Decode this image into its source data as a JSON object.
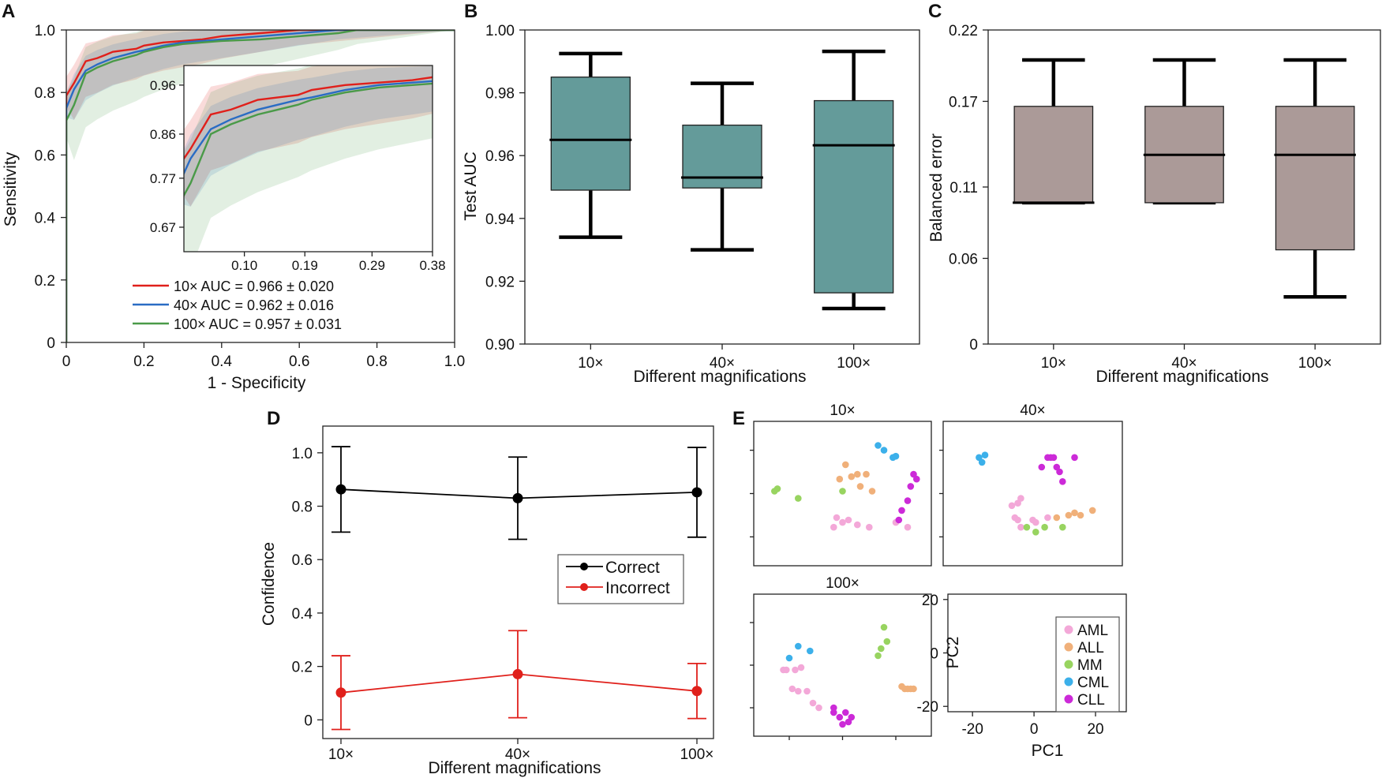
{
  "panel_labels": {
    "a": "A",
    "b": "B",
    "c": "C",
    "d": "D",
    "e": "E"
  },
  "colors": {
    "red": "#e0201b",
    "blue": "#2a6cc4",
    "green": "#4a9a48",
    "box_b": "#649b9a",
    "box_c": "#ab9a98",
    "black": "#000000",
    "aml": "#f3a8d8",
    "all": "#f0b07a",
    "mm": "#98d460",
    "cml": "#3cb0ea",
    "cll": "#cc2ad8"
  },
  "chart_data": [
    {
      "id": "A",
      "type": "line",
      "xlabel": "1 - Specificity",
      "ylabel": "Sensitivity",
      "xlim": [
        0,
        1
      ],
      "ylim": [
        0,
        1
      ],
      "xticks": [
        "0",
        "0.2",
        "0.4",
        "0.6",
        "0.8",
        "1.0"
      ],
      "yticks": [
        "0",
        "0.2",
        "0.4",
        "0.6",
        "0.8",
        "1.0"
      ],
      "series": [
        {
          "name": "10× AUC = 0.966 ± 0.020",
          "color": "#e0201b",
          "x": [
            0,
            0,
            0.02,
            0.05,
            0.08,
            0.1,
            0.12,
            0.15,
            0.18,
            0.2,
            0.25,
            0.3,
            0.35,
            0.4,
            0.5,
            0.6,
            0.7,
            0.75,
            0.8,
            1
          ],
          "y": [
            0,
            0.79,
            0.83,
            0.9,
            0.91,
            0.92,
            0.93,
            0.935,
            0.94,
            0.95,
            0.96,
            0.965,
            0.97,
            0.98,
            0.99,
            1,
            1,
            1,
            1,
            1
          ]
        },
        {
          "name": "40× AUC = 0.962 ± 0.016",
          "color": "#2a6cc4",
          "x": [
            0,
            0,
            0.02,
            0.05,
            0.08,
            0.1,
            0.12,
            0.15,
            0.18,
            0.2,
            0.25,
            0.3,
            0.35,
            0.4,
            0.5,
            0.6,
            0.7,
            0.75,
            0.8,
            1
          ],
          "y": [
            0,
            0.75,
            0.81,
            0.87,
            0.89,
            0.9,
            0.91,
            0.92,
            0.93,
            0.935,
            0.95,
            0.96,
            0.965,
            0.97,
            0.98,
            0.99,
            1,
            1,
            1,
            1
          ]
        },
        {
          "name": "100× AUC = 0.957 ± 0.031",
          "color": "#4a9a48",
          "x": [
            0,
            0,
            0.02,
            0.05,
            0.08,
            0.1,
            0.12,
            0.15,
            0.18,
            0.2,
            0.25,
            0.3,
            0.35,
            0.4,
            0.5,
            0.6,
            0.7,
            0.75,
            0.8,
            1
          ],
          "y": [
            0,
            0.71,
            0.76,
            0.86,
            0.88,
            0.89,
            0.9,
            0.91,
            0.92,
            0.93,
            0.945,
            0.955,
            0.96,
            0.965,
            0.97,
            0.98,
            0.99,
            1,
            1,
            1
          ]
        }
      ],
      "inset": {
        "xlim": [
          0.01,
          0.38
        ],
        "ylim": [
          0.62,
          1.0
        ],
        "xticks": [
          "0.10",
          "0.19",
          "0.29",
          "0.38"
        ],
        "yticks": [
          "0.67",
          "0.77",
          "0.86",
          "0.96"
        ]
      }
    },
    {
      "id": "B",
      "type": "box",
      "xlabel": "Different magnifications",
      "ylabel": "Test AUC",
      "categories": [
        "10×",
        "40×",
        "100×"
      ],
      "ylim": [
        0.9,
        1.0
      ],
      "yticks": [
        "0.90",
        "0.92",
        "0.94",
        "0.96",
        "0.98",
        "1.00"
      ],
      "boxes": [
        {
          "min": 0.934,
          "q1": 0.949,
          "median": 0.965,
          "q3": 0.985,
          "max": 0.9925
        },
        {
          "min": 0.93,
          "q1": 0.9497,
          "median": 0.953,
          "q3": 0.9697,
          "max": 0.983
        },
        {
          "min": 0.9113,
          "q1": 0.9163,
          "median": 0.9633,
          "q3": 0.9775,
          "max": 0.9932
        }
      ]
    },
    {
      "id": "C",
      "type": "box",
      "xlabel": "Different magnifications",
      "ylabel": "Balanced error",
      "categories": [
        "10×",
        "40×",
        "100×"
      ],
      "ylim": [
        0,
        0.22
      ],
      "yticks": [
        "0",
        "0.06",
        "0.11",
        "0.17",
        "0.22"
      ],
      "boxes": [
        {
          "min": 0.099,
          "q1": 0.099,
          "median": 0.099,
          "q3": 0.1665,
          "max": 0.199
        },
        {
          "min": 0.099,
          "q1": 0.099,
          "median": 0.1325,
          "q3": 0.1665,
          "max": 0.199
        },
        {
          "min": 0.033,
          "q1": 0.066,
          "median": 0.1325,
          "q3": 0.1665,
          "max": 0.199
        }
      ]
    },
    {
      "id": "D",
      "type": "line",
      "xlabel": "Different magnifications",
      "ylabel": "Confidence",
      "categories": [
        "10×",
        "40×",
        "100×"
      ],
      "ylim": [
        -0.07,
        1.1
      ],
      "yticks": [
        "0",
        "0.2",
        "0.4",
        "0.6",
        "0.8",
        "1.0"
      ],
      "series": [
        {
          "name": "Correct",
          "color": "#000000",
          "values": [
            0.863,
            0.83,
            0.852
          ],
          "err": [
            0.16,
            0.154,
            0.168
          ]
        },
        {
          "name": "Incorrect",
          "color": "#e0201b",
          "values": [
            0.102,
            0.171,
            0.108
          ],
          "err": [
            0.138,
            0.163,
            0.103
          ]
        }
      ]
    },
    {
      "id": "E",
      "type": "scatter",
      "xlabel": "PC1",
      "ylabel": "PC2",
      "xticks": [
        "-20",
        "0",
        "20"
      ],
      "yticks": [
        "-20",
        "0",
        "20"
      ],
      "classes": [
        "AML",
        "ALL",
        "MM",
        "CML",
        "CLL"
      ],
      "panels": [
        {
          "title": "10×",
          "points": {
            "AML": [
              [
                -2,
                -10
              ],
              [
                0,
                -12
              ],
              [
                2,
                -11
              ],
              [
                -3,
                -14
              ],
              [
                5,
                -13
              ],
              [
                9,
                -14
              ],
              [
                18,
                -12
              ],
              [
                22,
                -14
              ]
            ],
            "ALL": [
              [
                1,
                12
              ],
              [
                3,
                7
              ],
              [
                -1,
                6
              ],
              [
                5,
                8
              ],
              [
                8,
                8
              ],
              [
                6,
                3
              ],
              [
                10,
                1
              ]
            ],
            "MM": [
              [
                -23,
                1
              ],
              [
                -22,
                2
              ],
              [
                -15,
                -2
              ],
              [
                0,
                1
              ]
            ],
            "CML": [
              [
                12,
                20
              ],
              [
                14,
                18
              ],
              [
                17,
                15
              ],
              [
                18,
                15.5
              ]
            ],
            "CLL": [
              [
                24,
                8
              ],
              [
                25,
                6
              ],
              [
                23,
                3
              ],
              [
                22,
                -3
              ],
              [
                20,
                -7
              ],
              [
                19,
                -11
              ]
            ]
          }
        },
        {
          "title": "40×",
          "points": {
            "AML": [
              [
                -7,
                -5
              ],
              [
                -5,
                -4
              ],
              [
                -4,
                -2
              ],
              [
                -6,
                -10
              ],
              [
                -5,
                -11
              ],
              [
                -4,
                -14
              ],
              [
                0,
                -11
              ],
              [
                1,
                -12
              ],
              [
                5,
                -10
              ]
            ],
            "ALL": [
              [
                8,
                -10
              ],
              [
                12,
                -9
              ],
              [
                14,
                -8
              ],
              [
                16,
                -9
              ],
              [
                20,
                -7
              ]
            ],
            "MM": [
              [
                -2,
                -14
              ],
              [
                1,
                -16
              ],
              [
                4,
                -14
              ],
              [
                10,
                -14
              ]
            ],
            "CML": [
              [
                -18,
                15
              ],
              [
                -16,
                16
              ],
              [
                -17,
                13
              ]
            ],
            "CLL": [
              [
                5,
                15
              ],
              [
                6,
                15
              ],
              [
                7,
                15
              ],
              [
                14,
                15
              ],
              [
                3,
                11
              ],
              [
                8,
                11
              ],
              [
                9,
                9
              ],
              [
                10,
                5
              ]
            ]
          }
        },
        {
          "title": "100×",
          "points": {
            "AML": [
              [
                -20,
                -2
              ],
              [
                -19,
                -2
              ],
              [
                -16,
                -2
              ],
              [
                -14,
                -1
              ],
              [
                -17,
                -10
              ],
              [
                -15,
                -11
              ],
              [
                -12,
                -11
              ],
              [
                -10,
                -16
              ],
              [
                -8,
                -18
              ]
            ],
            "ALL": [
              [
                20,
                -9
              ],
              [
                21,
                -10
              ],
              [
                22,
                -10
              ],
              [
                23,
                -10
              ],
              [
                24,
                -10
              ]
            ],
            "MM": [
              [
                14,
                16
              ],
              [
                15,
                10
              ],
              [
                13,
                7
              ],
              [
                12,
                4
              ]
            ],
            "CML": [
              [
                -18,
                3
              ],
              [
                -15,
                8
              ],
              [
                -11,
                6
              ]
            ],
            "CLL": [
              [
                -3,
                -18
              ],
              [
                -3,
                -20
              ],
              [
                1,
                -20
              ],
              [
                -1,
                -22
              ],
              [
                3,
                -22
              ],
              [
                2,
                -24
              ],
              [
                0,
                -25
              ]
            ]
          }
        }
      ],
      "legend": [
        {
          "label": "AML",
          "color": "#f3a8d8"
        },
        {
          "label": "ALL",
          "color": "#f0b07a"
        },
        {
          "label": "MM",
          "color": "#98d460"
        },
        {
          "label": "CML",
          "color": "#3cb0ea"
        },
        {
          "label": "CLL",
          "color": "#cc2ad8"
        }
      ]
    }
  ]
}
